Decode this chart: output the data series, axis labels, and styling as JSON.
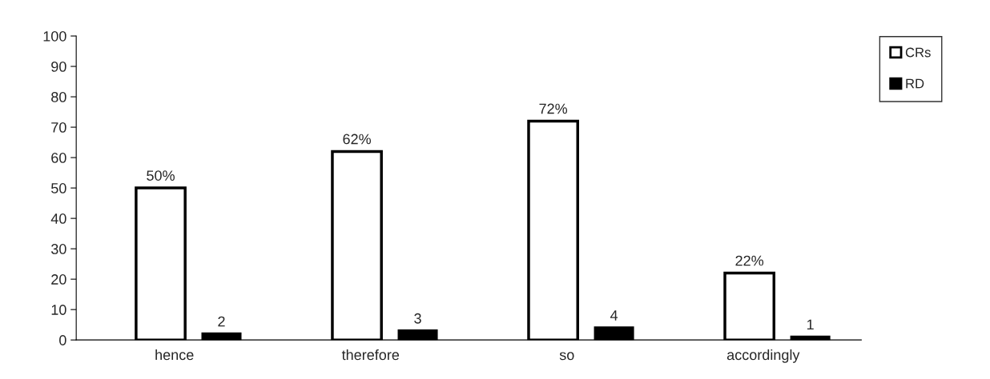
{
  "chart_data": {
    "type": "bar",
    "categories": [
      "hence",
      "therefore",
      "so",
      "accordingly"
    ],
    "series": [
      {
        "name": "CRs",
        "color": "#ffffff",
        "values": [
          50,
          62,
          72,
          22
        ],
        "value_labels": [
          "50%",
          "62%",
          "72%",
          "22%"
        ]
      },
      {
        "name": "RD",
        "color": "#000000",
        "values": [
          2,
          3,
          4,
          1
        ],
        "value_labels": [
          "2",
          "3",
          "4",
          "1"
        ]
      }
    ],
    "ylim": [
      0,
      100
    ],
    "yticks": [
      0,
      10,
      20,
      30,
      40,
      50,
      60,
      70,
      80,
      90,
      100
    ],
    "grid": false,
    "legend": "top right"
  }
}
